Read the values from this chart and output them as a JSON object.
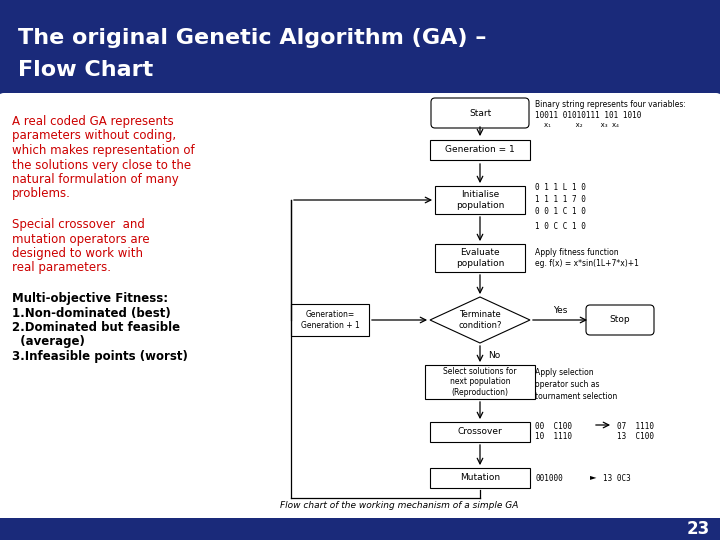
{
  "title_line1": "The original Genetic Algorithm (GA) –",
  "title_line2": "Flow Chart",
  "title_bg_color": "#1A2A7A",
  "title_text_color": "#FFFFFF",
  "slide_bg_color": "#1A2A7A",
  "body_bg_color": "#FFFFFF",
  "left_text_color": "#CC0000",
  "left_texts_para1": [
    "A real coded GA represents",
    "parameters without coding,",
    "which makes representation of",
    "the solutions very close to the",
    "natural formulation of many",
    "problems."
  ],
  "left_texts_para2": [
    "Special crossover  and",
    "mutation operators are",
    "designed to work with",
    "real parameters."
  ],
  "left_texts_para3": [
    "Multi-objective Fitness:",
    "1.Non-dominated (best)",
    "2.Dominated but feasible",
    "  (average)",
    "3.Infeasible points (worst)"
  ],
  "page_number": "23",
  "footer_text": "Flow chart of the working mechanism of a simple GA"
}
